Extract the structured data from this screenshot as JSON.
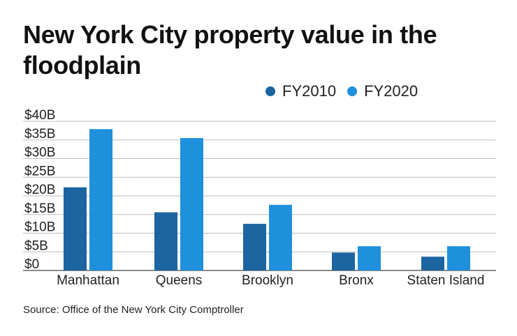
{
  "chart_data": {
    "type": "bar",
    "title": "New York City property value in the floodplain",
    "categories": [
      "Manhattan",
      "Queens",
      "Brooklyn",
      "Bronx",
      "Staten Island"
    ],
    "series": [
      {
        "name": "FY2010",
        "values": [
          22.3,
          15.6,
          12.5,
          4.8,
          3.7
        ],
        "color": "#1c65a0"
      },
      {
        "name": "FY2020",
        "values": [
          37.9,
          35.5,
          17.6,
          6.5,
          6.5
        ],
        "color": "#1e90dc"
      }
    ],
    "y_ticks": [
      "$0",
      "$5B",
      "$10B",
      "$15B",
      "$20B",
      "$25B",
      "$30B",
      "$35B",
      "$40B"
    ],
    "y_tick_values": [
      0,
      5,
      10,
      15,
      20,
      25,
      30,
      35,
      40
    ],
    "ylim": [
      0,
      40
    ],
    "grid": true,
    "legend_position": "top-right",
    "source": "Source: Office of the New York City Comptroller"
  }
}
